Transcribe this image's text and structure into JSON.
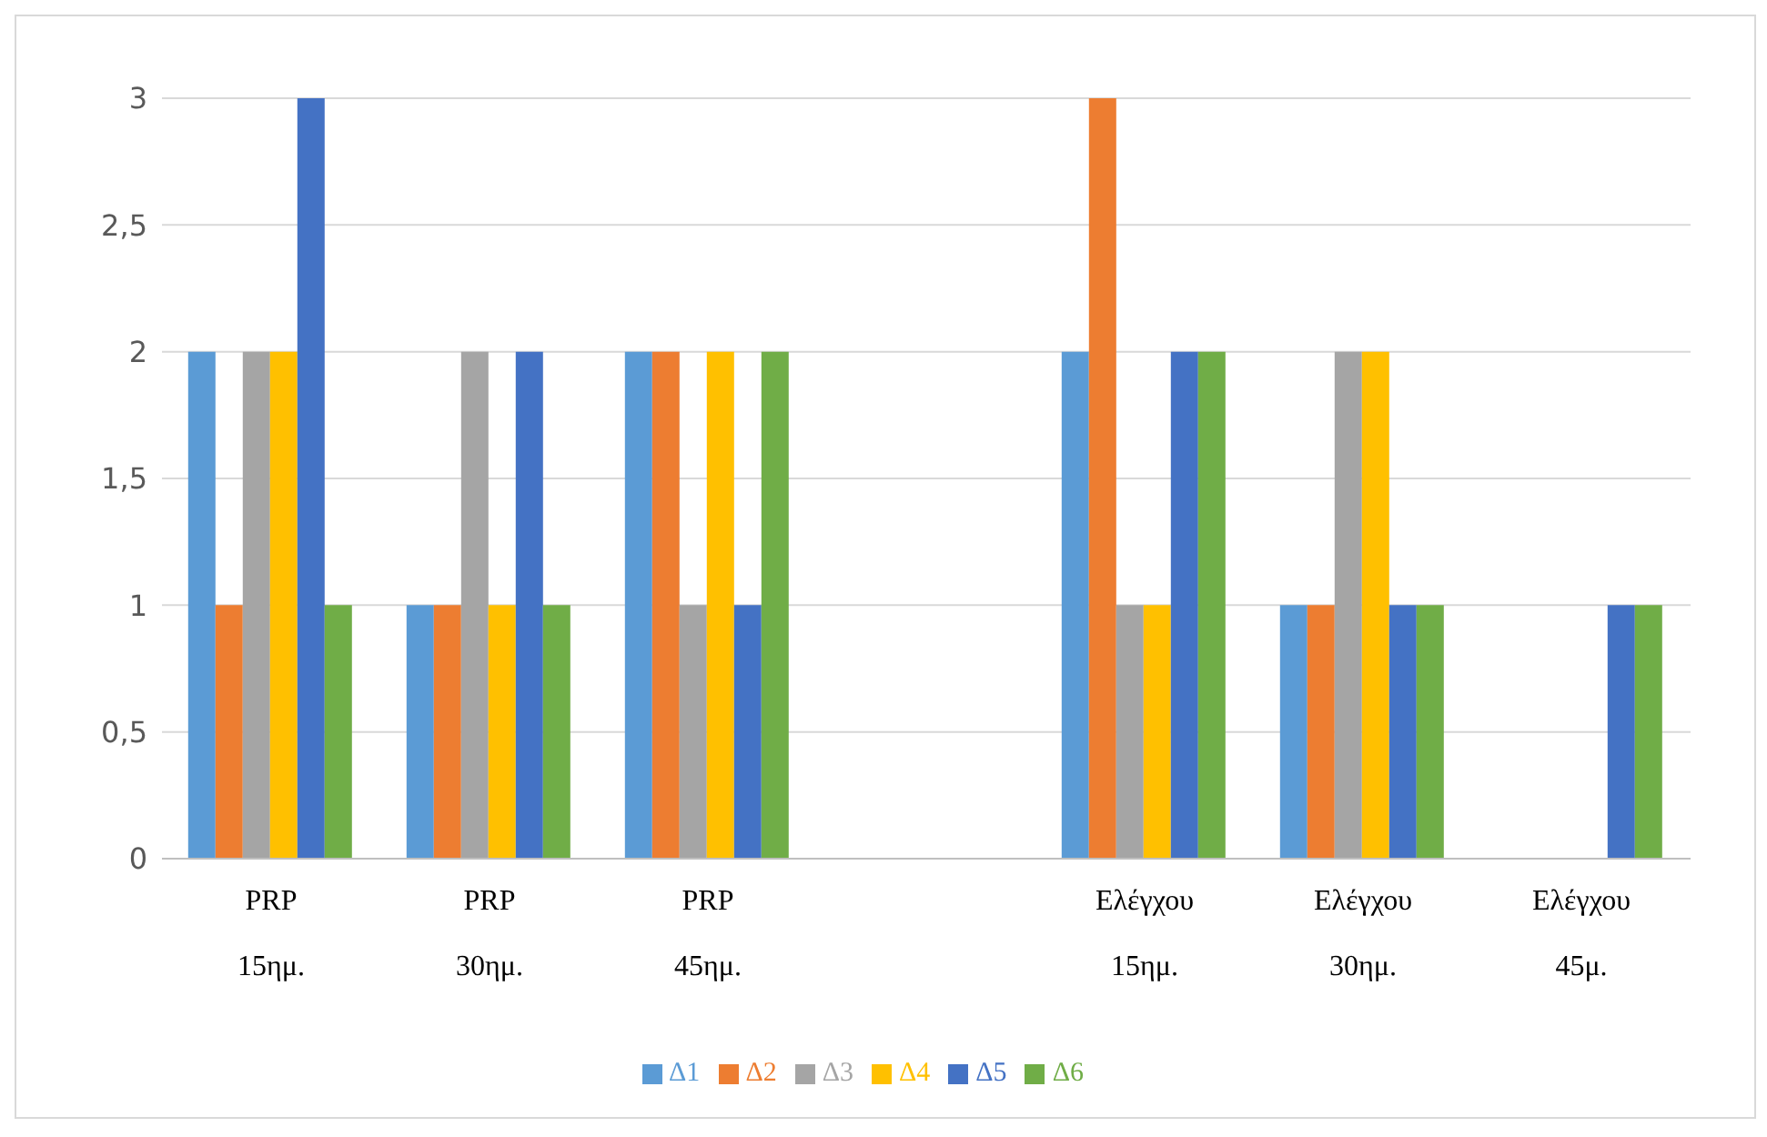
{
  "chart_data": {
    "type": "bar",
    "categories": [
      "PRP 15ημ.",
      "PRP 30ημ.",
      "PRP 45ημ.",
      null,
      "Ελέγχου 15ημ.",
      "Ελέγχου 30ημ.",
      "Ελέγχου 45μ."
    ],
    "series": [
      {
        "name": "Δ1",
        "color": "#5b9bd5",
        "values": [
          2,
          1,
          2,
          null,
          2,
          1,
          0
        ]
      },
      {
        "name": "Δ2",
        "color": "#ed7d31",
        "values": [
          1,
          1,
          2,
          null,
          3,
          1,
          0
        ]
      },
      {
        "name": "Δ3",
        "color": "#a5a5a5",
        "values": [
          2,
          2,
          1,
          null,
          1,
          2,
          0
        ]
      },
      {
        "name": "Δ4",
        "color": "#ffc000",
        "values": [
          2,
          1,
          2,
          null,
          1,
          2,
          0
        ]
      },
      {
        "name": "Δ5",
        "color": "#4472c4",
        "values": [
          3,
          2,
          1,
          null,
          2,
          1,
          1
        ]
      },
      {
        "name": "Δ6",
        "color": "#70ad47",
        "values": [
          1,
          1,
          2,
          null,
          2,
          1,
          1
        ]
      }
    ],
    "ylim": [
      0,
      3
    ],
    "yticks": [
      0,
      {
        "value": 0.5,
        "label": "0,5"
      },
      1,
      {
        "value": 1.5,
        "label": "1,5"
      },
      2,
      {
        "value": 2.5,
        "label": "2,5"
      },
      3
    ],
    "grid": "y",
    "legend": "bottom"
  }
}
